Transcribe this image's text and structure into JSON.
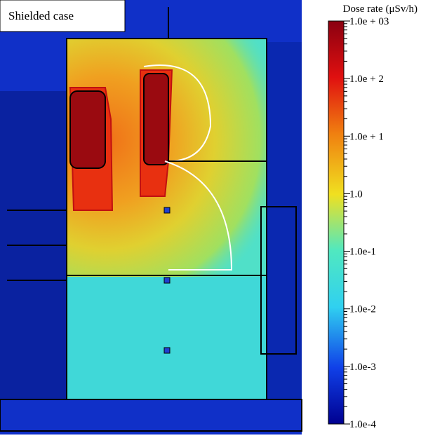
{
  "label": "Shielded case",
  "colorbar": {
    "title": "Dose rate (μSv/h)",
    "log": true,
    "range": [
      0.0001,
      1000
    ],
    "ticks": [
      {
        "value": 1000,
        "label": "1.0e + 03"
      },
      {
        "value": 100,
        "label": "1.0e + 2"
      },
      {
        "value": 10,
        "label": "1.0e + 1"
      },
      {
        "value": 1,
        "label": "1.0"
      },
      {
        "value": 0.1,
        "label": "1.0e-1"
      },
      {
        "value": 0.01,
        "label": "1.0e-2"
      },
      {
        "value": 0.001,
        "label": "1.0e-3"
      },
      {
        "value": 0.0001,
        "label": "1.0e-4"
      }
    ]
  }
}
